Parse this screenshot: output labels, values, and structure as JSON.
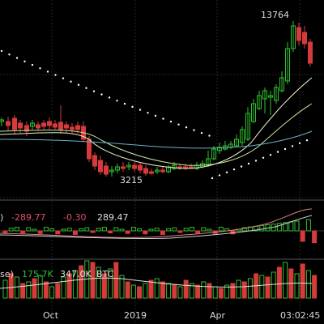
{
  "chart_data": [
    {
      "type": "candlestick",
      "name": "price",
      "annotations": {
        "high_label": "13764",
        "low_label": "3215"
      },
      "colors": {
        "up": "#2fc02f",
        "down": "#d63a3a",
        "ma_fast": "#f0f0c8",
        "ma_mid": "#c8e8a0",
        "ma_slow": "#6ab0c8",
        "sar": "#ffffff"
      },
      "grid": true
    },
    {
      "type": "macd",
      "labels": {
        "prefix": ")",
        "v1": "-289.77",
        "v2": "-0.30",
        "v3": "289.47"
      },
      "colors": {
        "v1": "#e0506a",
        "v2": "#e0506a",
        "v3": "#e0e0e0"
      }
    },
    {
      "type": "volume",
      "labels": {
        "prefix": "se)",
        "v1": "175.7K",
        "v2": "347.0K",
        "v3": "BTC"
      },
      "colors": {
        "v1": "#2fc02f",
        "v2": "#e0e0e0",
        "v3": "#e0e0e0"
      }
    }
  ],
  "x_axis": {
    "ticks": [
      "Oct",
      "2019",
      "Apr"
    ]
  },
  "time_label": "03:02:45"
}
